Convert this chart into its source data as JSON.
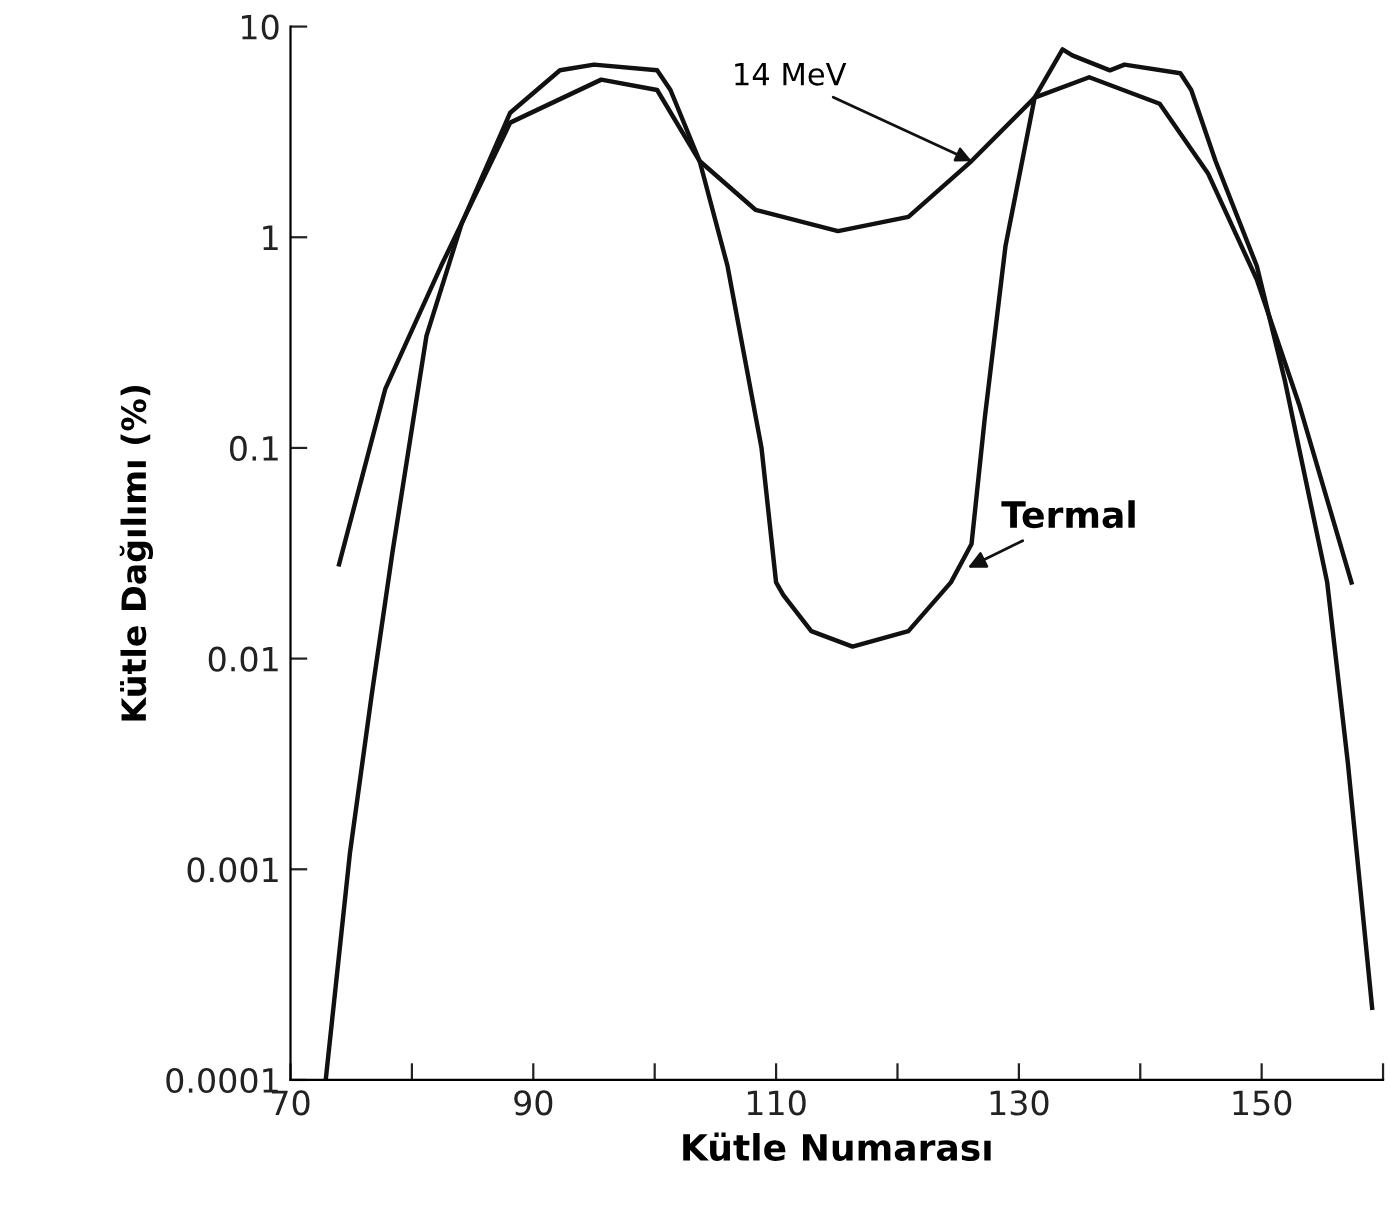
{
  "chart_data": {
    "type": "line",
    "xlabel": "Kütle Numarası",
    "ylabel": "Kütle Dağılımı (%)",
    "log": "y",
    "grid": false,
    "legend": false,
    "marker": "none",
    "line_style": "solid",
    "xlim": [
      70,
      160
    ],
    "ylim": [
      0.0001,
      10
    ],
    "xticks": [
      70,
      {
        "value": 80,
        "label": null
      },
      90,
      {
        "value": 100,
        "label": null
      },
      110,
      {
        "value": 120,
        "label": null
      },
      130,
      {
        "value": 140,
        "label": null
      },
      150,
      {
        "value": 160,
        "label": null
      }
    ],
    "yticks": [
      0.0001,
      0.001,
      0.01,
      0.1,
      1,
      10
    ],
    "series": [
      {
        "color": "#111111",
        "x": [
          74.0,
          77.8,
          82.4,
          88.1,
          95.6,
          100.2,
          103.7,
          108.3,
          115.1,
          120.9,
          126.1,
          131.3,
          135.8,
          141.6,
          145.6,
          149.6,
          153.1,
          157.4
        ],
        "values": [
          0.028,
          0.19,
          0.73,
          3.5,
          5.6,
          5.0,
          2.3,
          1.35,
          1.07,
          1.25,
          2.3,
          4.6,
          5.75,
          4.3,
          2.0,
          0.63,
          0.16,
          0.023
        ]
      },
      {
        "color": "#111111",
        "x": [
          72.9,
          74.9,
          76.7,
          78.4,
          81.2,
          84.1,
          88.1,
          92.2,
          95.0,
          100.2,
          101.3,
          103.7,
          106.0,
          108.8,
          110.0,
          110.6,
          112.9,
          116.3,
          120.9,
          124.4,
          126.1,
          127.2,
          128.9,
          131.3,
          133.6,
          134.4,
          137.5,
          138.7,
          143.3,
          144.2,
          146.2,
          149.6,
          151.9,
          155.4,
          157.1,
          159.1
        ],
        "values": [
          0.0001,
          0.0012,
          0.0068,
          0.032,
          0.34,
          1.16,
          3.9,
          6.2,
          6.6,
          6.2,
          5.0,
          2.3,
          0.73,
          0.1,
          0.023,
          0.02,
          0.0135,
          0.0114,
          0.0135,
          0.023,
          0.035,
          0.14,
          0.91,
          4.6,
          7.8,
          7.3,
          6.2,
          6.6,
          6.0,
          5.0,
          2.3,
          0.73,
          0.21,
          0.023,
          0.0032,
          0.00022
        ]
      }
    ],
    "annotations": [
      {
        "text": "14 MeV",
        "x": 126.1,
        "y": 2.3
      },
      {
        "text": "Termal",
        "x": 125.8,
        "y": 0.027
      }
    ]
  }
}
